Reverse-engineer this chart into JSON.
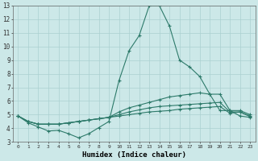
{
  "xlabel": "Humidex (Indice chaleur)",
  "x": [
    0,
    1,
    2,
    3,
    4,
    5,
    6,
    7,
    8,
    9,
    10,
    11,
    12,
    13,
    14,
    15,
    16,
    17,
    18,
    19,
    20,
    21,
    22,
    23
  ],
  "line_top": [
    4.9,
    4.4,
    4.1,
    3.8,
    3.85,
    3.6,
    3.3,
    3.6,
    4.05,
    4.5,
    7.5,
    9.7,
    10.8,
    13.0,
    13.0,
    11.5,
    9.0,
    8.5,
    7.8,
    6.5,
    5.3,
    5.3,
    4.9,
    4.8
  ],
  "line_upper_mid": [
    4.9,
    4.5,
    4.3,
    4.3,
    4.3,
    4.4,
    4.5,
    4.6,
    4.7,
    4.8,
    5.2,
    5.5,
    5.7,
    5.9,
    6.1,
    6.3,
    6.4,
    6.5,
    6.6,
    6.5,
    6.5,
    5.3,
    5.3,
    5.0
  ],
  "line_lower_mid": [
    4.9,
    4.5,
    4.3,
    4.3,
    4.3,
    4.4,
    4.5,
    4.6,
    4.7,
    4.8,
    5.0,
    5.2,
    5.35,
    5.5,
    5.6,
    5.65,
    5.7,
    5.75,
    5.8,
    5.85,
    5.9,
    5.2,
    5.2,
    4.9
  ],
  "line_bottom": [
    4.9,
    4.5,
    4.3,
    4.3,
    4.3,
    4.4,
    4.5,
    4.6,
    4.7,
    4.8,
    4.9,
    5.0,
    5.1,
    5.2,
    5.25,
    5.3,
    5.4,
    5.45,
    5.5,
    5.55,
    5.6,
    5.1,
    5.2,
    4.85
  ],
  "color": "#2d7a6a",
  "bg_color": "#cce8e8",
  "grid_color": "#aad0d0",
  "ylim": [
    3,
    13
  ],
  "yticks": [
    3,
    4,
    5,
    6,
    7,
    8,
    9,
    10,
    11,
    12,
    13
  ],
  "xticks": [
    0,
    1,
    2,
    3,
    4,
    5,
    6,
    7,
    8,
    9,
    10,
    11,
    12,
    13,
    14,
    15,
    16,
    17,
    18,
    19,
    20,
    21,
    22,
    23
  ]
}
